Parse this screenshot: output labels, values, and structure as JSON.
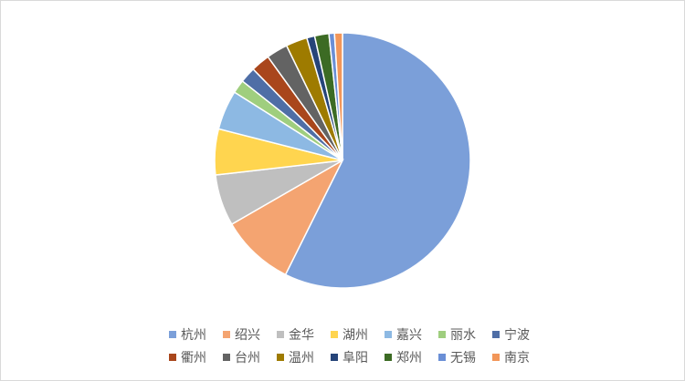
{
  "chart_data": {
    "type": "pie",
    "categories": [
      "杭州",
      "绍兴",
      "金华",
      "湖州",
      "嘉兴",
      "丽水",
      "宁波",
      "衢州",
      "台州",
      "温州",
      "阜阳",
      "郑州",
      "无锡",
      "南京"
    ],
    "values": [
      57.3,
      9.3,
      6.5,
      5.8,
      5.0,
      1.7,
      2.0,
      2.4,
      2.7,
      2.7,
      1.0,
      1.8,
      0.7,
      1.0
    ],
    "colors": [
      "#7b9fd9",
      "#f4a471",
      "#bfbfbf",
      "#ffd54f",
      "#8db9e3",
      "#9fce7e",
      "#4f6ea6",
      "#a9461c",
      "#636363",
      "#9e7b00",
      "#264479",
      "#3c6b24",
      "#6a8fd6",
      "#f29659"
    ],
    "legend": "bottom"
  }
}
